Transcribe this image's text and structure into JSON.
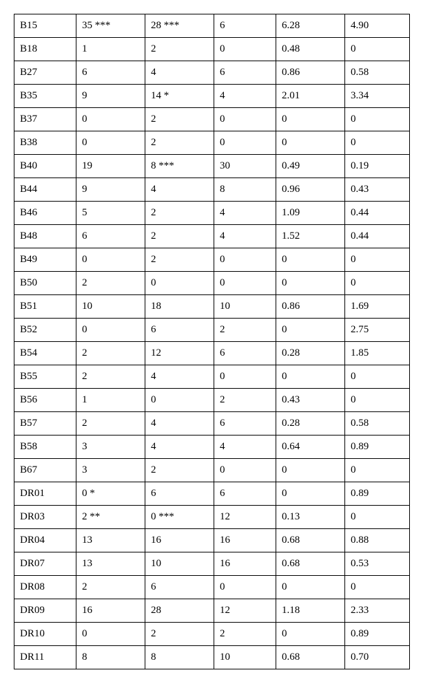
{
  "table": {
    "rows": [
      [
        "B15",
        "35 ***",
        "28 ***",
        "6",
        "6.28",
        "4.90"
      ],
      [
        "B18",
        "1",
        "2",
        "0",
        "0.48",
        "0"
      ],
      [
        "B27",
        "6",
        "4",
        "6",
        "0.86",
        "0.58"
      ],
      [
        "B35",
        "9",
        "14 *",
        "4",
        "2.01",
        "3.34"
      ],
      [
        "B37",
        "0",
        "2",
        "0",
        "0",
        "0"
      ],
      [
        "B38",
        "0",
        "2",
        "0",
        "0",
        "0"
      ],
      [
        "B40",
        "19",
        "8    ***",
        "30",
        "0.49",
        "0.19"
      ],
      [
        "B44",
        "9",
        "4",
        "8",
        "0.96",
        "0.43"
      ],
      [
        "B46",
        "5",
        "2",
        "4",
        "1.09",
        "0.44"
      ],
      [
        "B48",
        "6",
        "2",
        "4",
        "1.52",
        "0.44"
      ],
      [
        "B49",
        "0",
        "2",
        "0",
        "0",
        "0"
      ],
      [
        "B50",
        "2",
        "0",
        "0",
        "0",
        "0"
      ],
      [
        "B51",
        "10",
        "18",
        "10",
        "0.86",
        "1.69"
      ],
      [
        "B52",
        "0",
        "6",
        "2",
        "0",
        "2.75"
      ],
      [
        "B54",
        "2",
        "12",
        "6",
        "0.28",
        "1.85"
      ],
      [
        "B55",
        "2",
        "4",
        "0",
        "0",
        "0"
      ],
      [
        "B56",
        "1",
        "0",
        "2",
        "0.43",
        "0"
      ],
      [
        "B57",
        "2",
        "4",
        "6",
        "0.28",
        "0.58"
      ],
      [
        "B58",
        "3",
        "4",
        "4",
        "0.64",
        "0.89"
      ],
      [
        "B67",
        "3",
        "2",
        "0",
        "0",
        "0"
      ],
      [
        "DR01",
        "0 *",
        "6",
        "6",
        "0",
        "0.89"
      ],
      [
        "DR03",
        "2 **",
        "0 ***",
        "12",
        "0.13",
        "0"
      ],
      [
        "DR04",
        "13",
        "16",
        "16",
        "0.68",
        "0.88"
      ],
      [
        "DR07",
        "13",
        "10",
        "16",
        "0.68",
        "0.53"
      ],
      [
        "DR08",
        "2",
        "6",
        "0",
        "0",
        "0"
      ],
      [
        "DR09",
        "16",
        "28",
        "12",
        "1.18",
        "2.33"
      ],
      [
        "DR10",
        "0",
        "2",
        "2",
        "0",
        "0.89"
      ],
      [
        "DR11",
        "8",
        "8",
        "10",
        "0.68",
        "0.70"
      ]
    ]
  }
}
